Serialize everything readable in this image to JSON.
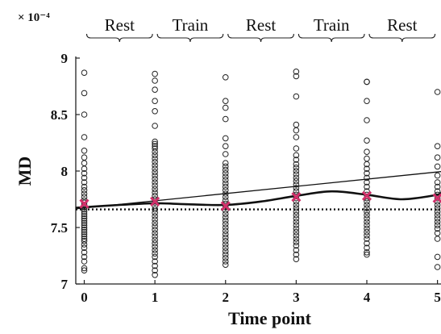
{
  "chart_data": {
    "type": "scatter",
    "title": "",
    "xlabel": "Time point",
    "ylabel": "MD",
    "y_multiplier": "× 10⁻⁴",
    "xlim": [
      -0.12,
      5.05
    ],
    "ylim": [
      7.0,
      9.0
    ],
    "x_ticks": [
      0,
      1,
      2,
      3,
      4,
      5
    ],
    "y_ticks": [
      7,
      7.5,
      8,
      8.5,
      9
    ],
    "y_tick_labels": [
      "7",
      "7.5",
      "8",
      "8.5",
      "9"
    ],
    "grid": false,
    "phases": [
      {
        "label": "Rest",
        "x_start": 0,
        "x_end": 1
      },
      {
        "label": "Train",
        "x_start": 1,
        "x_end": 2
      },
      {
        "label": "Rest",
        "x_start": 2,
        "x_end": 3
      },
      {
        "label": "Train",
        "x_start": 3,
        "x_end": 4
      },
      {
        "label": "Rest",
        "x_start": 4,
        "x_end": 5
      }
    ],
    "subject_points": [
      {
        "x": 0,
        "y": [
          8.87,
          8.69,
          8.5,
          8.3,
          8.18,
          8.12,
          8.07,
          8.02,
          7.98,
          7.94,
          7.9,
          7.86,
          7.83,
          7.8,
          7.77,
          7.74,
          7.72,
          7.7,
          7.68,
          7.66,
          7.64,
          7.62,
          7.6,
          7.58,
          7.56,
          7.54,
          7.52,
          7.5,
          7.48,
          7.46,
          7.44,
          7.42,
          7.4,
          7.38,
          7.35,
          7.32,
          7.28,
          7.24,
          7.2,
          7.14,
          7.12
        ]
      },
      {
        "x": 1,
        "y": [
          8.86,
          8.8,
          8.72,
          8.62,
          8.53,
          8.4,
          8.26,
          8.24,
          8.22,
          8.2,
          8.17,
          8.14,
          8.11,
          8.08,
          8.05,
          8.02,
          7.99,
          7.96,
          7.93,
          7.9,
          7.87,
          7.84,
          7.81,
          7.78,
          7.75,
          7.72,
          7.69,
          7.66,
          7.63,
          7.6,
          7.57,
          7.54,
          7.51,
          7.48,
          7.45,
          7.42,
          7.39,
          7.36,
          7.33,
          7.3,
          7.27,
          7.24,
          7.2,
          7.16,
          7.12,
          7.08
        ]
      },
      {
        "x": 2,
        "y": [
          8.83,
          8.62,
          8.56,
          8.46,
          8.29,
          8.22,
          8.15,
          8.07,
          8.04,
          8.01,
          7.98,
          7.95,
          7.92,
          7.89,
          7.86,
          7.83,
          7.8,
          7.77,
          7.74,
          7.71,
          7.68,
          7.65,
          7.62,
          7.59,
          7.56,
          7.53,
          7.5,
          7.47,
          7.44,
          7.41,
          7.38,
          7.35,
          7.32,
          7.29,
          7.26,
          7.23,
          7.2,
          7.17
        ]
      },
      {
        "x": 3,
        "y": [
          8.88,
          8.84,
          8.66,
          8.41,
          8.36,
          8.3,
          8.2,
          8.14,
          8.1,
          8.06,
          8.03,
          8.0,
          7.97,
          7.94,
          7.91,
          7.88,
          7.85,
          7.82,
          7.79,
          7.76,
          7.73,
          7.7,
          7.67,
          7.64,
          7.61,
          7.58,
          7.55,
          7.52,
          7.49,
          7.46,
          7.43,
          7.4,
          7.37,
          7.34,
          7.3,
          7.26,
          7.22
        ]
      },
      {
        "x": 4,
        "y": [
          8.79,
          8.79,
          8.62,
          8.45,
          8.27,
          8.17,
          8.11,
          8.06,
          8.02,
          7.98,
          7.94,
          7.9,
          7.86,
          7.82,
          7.79,
          7.76,
          7.73,
          7.7,
          7.67,
          7.64,
          7.61,
          7.58,
          7.55,
          7.52,
          7.49,
          7.46,
          7.43,
          7.4,
          7.36,
          7.32,
          7.28,
          7.26
        ]
      },
      {
        "x": 5,
        "y": [
          8.7,
          8.22,
          8.12,
          8.04,
          7.96,
          7.9,
          7.86,
          7.82,
          7.79,
          7.76,
          7.73,
          7.7,
          7.67,
          7.64,
          7.61,
          7.58,
          7.55,
          7.52,
          7.49,
          7.45,
          7.4,
          7.24,
          7.15
        ]
      }
    ],
    "means": {
      "x": [
        0,
        1,
        2,
        3,
        4,
        5
      ],
      "y": [
        7.71,
        7.73,
        7.69,
        7.77,
        7.78,
        7.76
      ]
    },
    "linear_fit": {
      "x": [
        -0.12,
        5.05
      ],
      "y": [
        7.665,
        7.995
      ]
    },
    "smooth_fit": {
      "x": [
        -0.12,
        0.5,
        1.0,
        1.5,
        2.0,
        2.5,
        3.0,
        3.5,
        4.0,
        4.5,
        5.0,
        5.05
      ],
      "y": [
        7.675,
        7.7,
        7.715,
        7.705,
        7.7,
        7.73,
        7.78,
        7.82,
        7.79,
        7.75,
        7.79,
        7.81
      ]
    },
    "baseline": {
      "y": 7.66
    }
  }
}
